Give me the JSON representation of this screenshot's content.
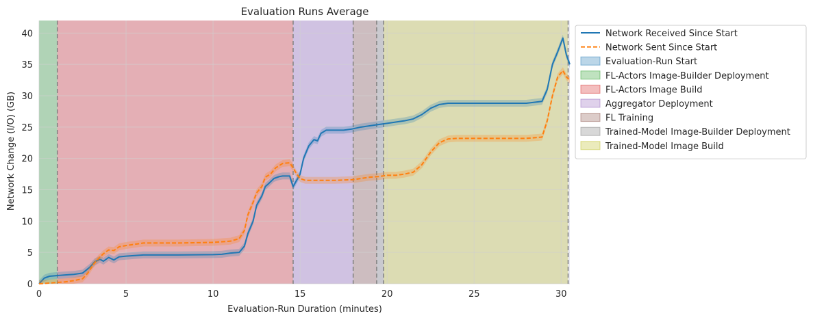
{
  "chart_data": {
    "type": "line",
    "title": "Evaluation Runs Average",
    "xlabel": "Evaluation-Run Duration (minutes)",
    "ylabel": "Network Change (I/O) (GB)",
    "xlim": [
      0,
      30.5
    ],
    "ylim": [
      0,
      42
    ],
    "xticks": [
      0,
      5,
      10,
      15,
      20,
      25,
      30
    ],
    "yticks": [
      0,
      5,
      10,
      15,
      20,
      25,
      30,
      35,
      40
    ],
    "grid": true,
    "legend_position": "outside-right-top",
    "phases": [
      {
        "name": "Evaluation-Run Start",
        "start": 0.0,
        "end": 0.0,
        "color": "#1f77b4"
      },
      {
        "name": "FL-Actors Image-Builder Deployment",
        "start": 0.0,
        "end": 1.05,
        "color": "#2ca02c"
      },
      {
        "name": "FL-Actors Image Build",
        "start": 1.05,
        "end": 14.6,
        "color": "#d62728"
      },
      {
        "name": "Aggregator Deployment",
        "start": 14.6,
        "end": 18.05,
        "color": "#9467bd"
      },
      {
        "name": "FL Training",
        "start": 18.05,
        "end": 19.4,
        "color": "#8c564b"
      },
      {
        "name": "Trained-Model Image-Builder Deployment",
        "start": 19.4,
        "end": 19.8,
        "color": "#7f7f7f"
      },
      {
        "name": "Trained-Model Image Build",
        "start": 19.8,
        "end": 30.4,
        "color": "#bcbd22"
      }
    ],
    "phase_boundaries": [
      1.05,
      14.6,
      18.05,
      19.4,
      19.8,
      30.4
    ],
    "series": [
      {
        "name": "Network Received Since Start",
        "color": "#1f77b4",
        "style": "solid",
        "x": [
          0,
          0.3,
          0.6,
          1.0,
          1.5,
          2.0,
          2.5,
          2.9,
          3.2,
          3.5,
          3.7,
          4.0,
          4.3,
          4.6,
          5.0,
          5.5,
          6.0,
          8.0,
          10.0,
          10.5,
          11.0,
          11.5,
          11.8,
          12.0,
          12.3,
          12.5,
          12.8,
          13.0,
          13.2,
          13.5,
          13.8,
          14.0,
          14.4,
          14.6,
          14.8,
          15.0,
          15.2,
          15.5,
          15.8,
          16.0,
          16.2,
          16.5,
          17.0,
          17.5,
          18.0,
          18.5,
          19.0,
          19.5,
          20.0,
          20.5,
          21.0,
          21.5,
          22.0,
          22.5,
          23.0,
          23.5,
          24.0,
          26.0,
          28.0,
          28.9,
          29.2,
          29.5,
          29.8,
          30.1,
          30.3,
          30.5
        ],
        "values": [
          0,
          0.9,
          1.2,
          1.3,
          1.4,
          1.5,
          1.7,
          2.6,
          3.5,
          3.9,
          3.6,
          4.2,
          3.8,
          4.3,
          4.4,
          4.5,
          4.6,
          4.6,
          4.65,
          4.7,
          4.9,
          5.0,
          6.0,
          8.0,
          10.0,
          12.5,
          14.0,
          15.5,
          16.0,
          16.8,
          17.1,
          17.2,
          17.2,
          15.5,
          16.5,
          17.5,
          20.0,
          22.0,
          23.0,
          22.8,
          24.0,
          24.5,
          24.5,
          24.5,
          24.7,
          25.0,
          25.2,
          25.4,
          25.6,
          25.8,
          26.0,
          26.3,
          27.0,
          28.0,
          28.6,
          28.8,
          28.8,
          28.8,
          28.8,
          29.1,
          31.0,
          35.0,
          37.0,
          39.2,
          36.5,
          35.0
        ]
      },
      {
        "name": "Network Sent Since Start",
        "color": "#ff7f0e",
        "style": "dashed",
        "x": [
          0,
          0.5,
          1.0,
          1.5,
          2.0,
          2.5,
          2.8,
          3.1,
          3.4,
          3.7,
          4.0,
          4.3,
          4.6,
          5.0,
          5.5,
          6.0,
          8.0,
          10.0,
          11.0,
          11.5,
          11.8,
          12.0,
          12.3,
          12.5,
          12.8,
          13.0,
          13.3,
          13.6,
          14.0,
          14.4,
          14.6,
          14.8,
          15.0,
          15.3,
          15.6,
          16.0,
          17.0,
          18.0,
          18.5,
          19.0,
          19.5,
          20.0,
          20.5,
          21.0,
          21.5,
          22.0,
          22.5,
          23.0,
          23.5,
          24.0,
          26.0,
          28.0,
          28.9,
          29.2,
          29.5,
          29.8,
          30.1,
          30.3,
          30.5
        ],
        "values": [
          0,
          0.1,
          0.2,
          0.3,
          0.5,
          0.8,
          1.7,
          3.0,
          4.0,
          4.8,
          5.4,
          5.3,
          5.9,
          6.1,
          6.3,
          6.5,
          6.5,
          6.6,
          6.8,
          7.2,
          8.5,
          11.0,
          13.0,
          14.5,
          15.5,
          17.0,
          17.5,
          18.5,
          19.2,
          19.3,
          18.5,
          17.5,
          16.8,
          16.5,
          16.5,
          16.5,
          16.5,
          16.6,
          16.8,
          17.0,
          17.1,
          17.3,
          17.3,
          17.5,
          17.8,
          19.0,
          21.0,
          22.5,
          23.1,
          23.2,
          23.2,
          23.2,
          23.4,
          26.0,
          30.0,
          33.0,
          34.0,
          33.0,
          32.5
        ]
      }
    ]
  }
}
